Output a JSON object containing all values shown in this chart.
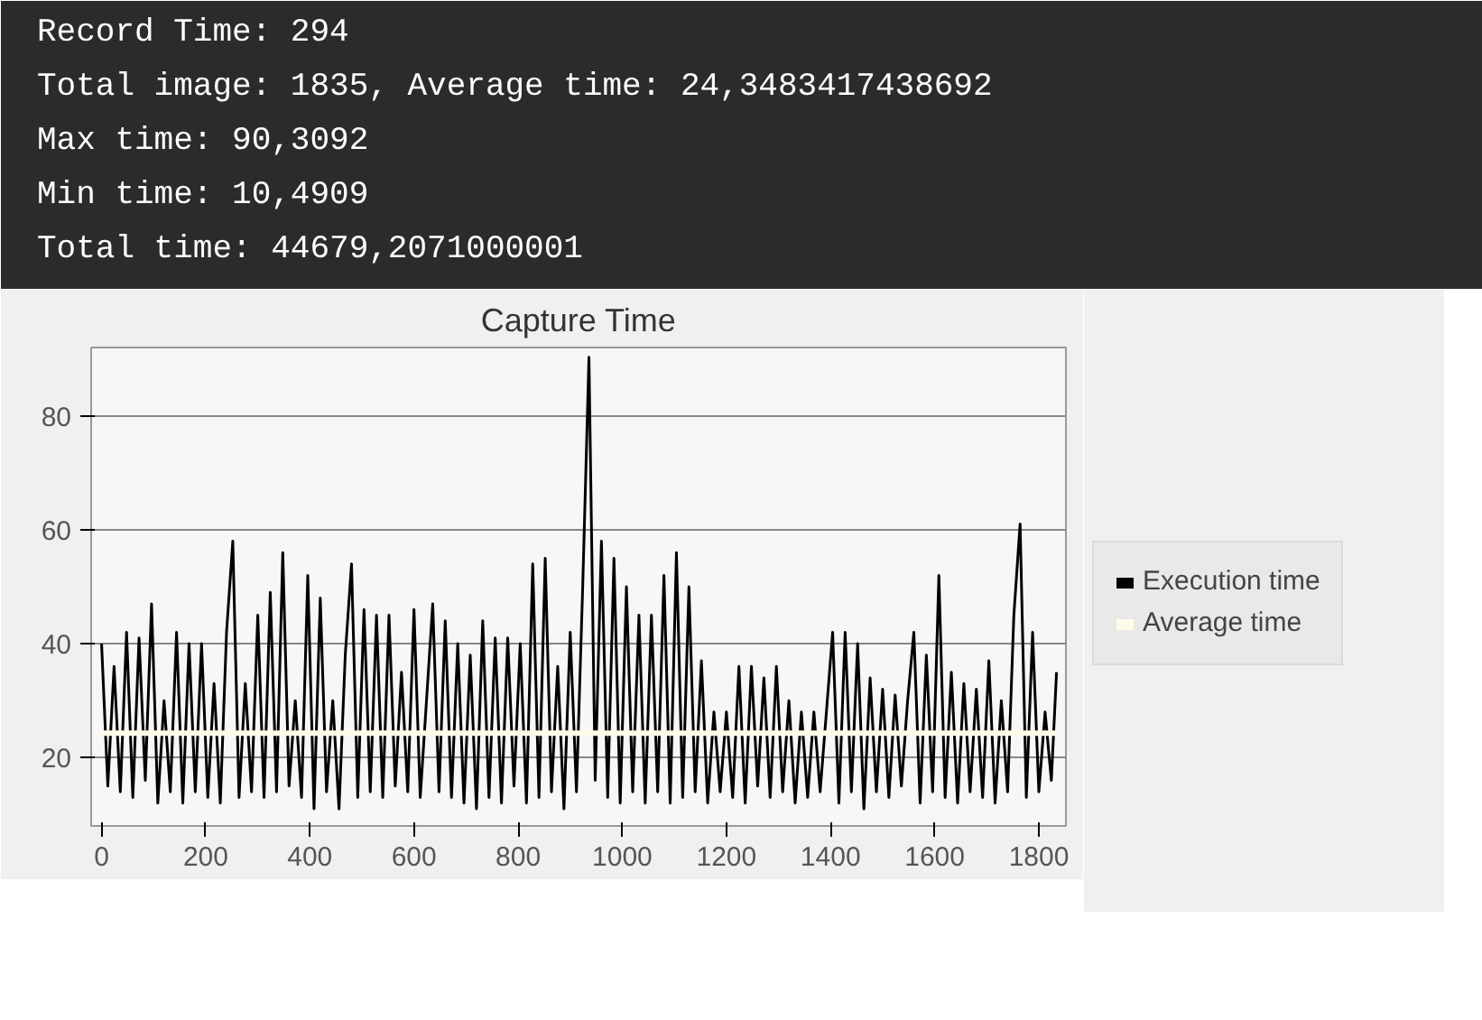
{
  "chart_data": {
    "type": "line",
    "title": "Capture Time",
    "annotations": [
      "Record Time: 294",
      "Total image: 1835, Average time: 24,3483417438692",
      "Max time: 90,3092",
      "Min time: 10,4909",
      "Total time: 44679,2071000001"
    ],
    "xlim": [
      -20,
      1852
    ],
    "ylim": [
      8,
      92
    ],
    "xticks": [
      0,
      200,
      400,
      600,
      800,
      1000,
      1200,
      1400,
      1600,
      1800
    ],
    "yticks": [
      20,
      40,
      60,
      80
    ],
    "grid": "y",
    "legend": "right",
    "marker": "none",
    "line_style": "solid",
    "series": [
      {
        "name": "Execution time",
        "color": "#000000",
        "x": [
          0,
          12,
          24,
          36,
          48,
          60,
          72,
          84,
          96,
          108,
          120,
          132,
          144,
          156,
          168,
          180,
          192,
          204,
          216,
          228,
          240,
          252,
          264,
          276,
          288,
          300,
          312,
          324,
          336,
          348,
          360,
          372,
          384,
          396,
          408,
          420,
          432,
          444,
          456,
          468,
          480,
          492,
          504,
          516,
          528,
          540,
          552,
          564,
          576,
          588,
          600,
          612,
          624,
          636,
          648,
          660,
          672,
          684,
          696,
          708,
          720,
          732,
          744,
          756,
          768,
          780,
          792,
          804,
          816,
          828,
          840,
          852,
          864,
          876,
          888,
          900,
          912,
          924,
          936,
          948,
          960,
          972,
          984,
          996,
          1008,
          1020,
          1032,
          1044,
          1056,
          1068,
          1080,
          1092,
          1104,
          1116,
          1128,
          1140,
          1152,
          1164,
          1176,
          1188,
          1200,
          1212,
          1224,
          1236,
          1248,
          1260,
          1272,
          1284,
          1296,
          1308,
          1320,
          1332,
          1344,
          1356,
          1368,
          1380,
          1392,
          1404,
          1416,
          1428,
          1440,
          1452,
          1464,
          1476,
          1488,
          1500,
          1512,
          1524,
          1536,
          1548,
          1560,
          1572,
          1584,
          1596,
          1608,
          1620,
          1632,
          1644,
          1656,
          1668,
          1680,
          1692,
          1704,
          1716,
          1728,
          1740,
          1752,
          1764,
          1776,
          1788,
          1800,
          1812,
          1824,
          1834
        ],
        "values": [
          40,
          15,
          36,
          14,
          42,
          13,
          41,
          16,
          47,
          12,
          30,
          14,
          42,
          12,
          40,
          14,
          40,
          13,
          33,
          12,
          42,
          58,
          13,
          33,
          14,
          45,
          13,
          49,
          14,
          56,
          15,
          30,
          13,
          52,
          11,
          48,
          14,
          30,
          11,
          38,
          54,
          13,
          46,
          14,
          45,
          13,
          45,
          15,
          35,
          14,
          46,
          13,
          30,
          47,
          14,
          44,
          13,
          40,
          12,
          38,
          11,
          44,
          13,
          41,
          12,
          41,
          15,
          40,
          12,
          54,
          13,
          55,
          14,
          36,
          11,
          42,
          14,
          50,
          90.3,
          16,
          58,
          13,
          55,
          12,
          50,
          14,
          45,
          12,
          45,
          14,
          52,
          12,
          56,
          13,
          50,
          14,
          37,
          12,
          28,
          14,
          28,
          13,
          36,
          12,
          36,
          15,
          34,
          13,
          36,
          14,
          30,
          12,
          28,
          13,
          28,
          14,
          28,
          42,
          12,
          42,
          14,
          40,
          11,
          34,
          14,
          32,
          13,
          31,
          15,
          30,
          42,
          12,
          38,
          14,
          52,
          13,
          35,
          12,
          33,
          14,
          32,
          13,
          37,
          12,
          30,
          14,
          45,
          61,
          13,
          42,
          14,
          28,
          16,
          35
        ]
      },
      {
        "name": "Average time",
        "color": "#fffbe6",
        "x": [
          0,
          1834
        ],
        "values": [
          24.3,
          24.3
        ]
      }
    ]
  }
}
